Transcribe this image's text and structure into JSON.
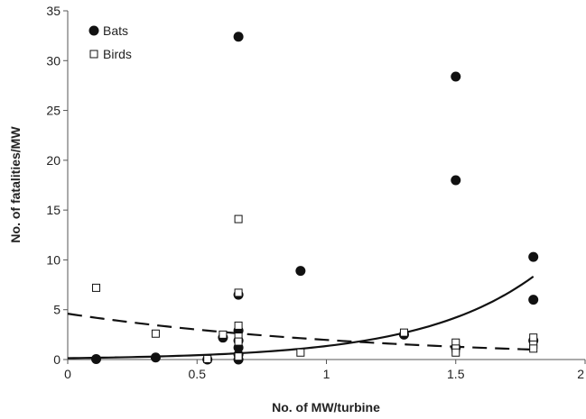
{
  "chart_data": {
    "type": "scatter",
    "xlabel": "No. of MW/turbine",
    "ylabel": "No. of fatalities/MW",
    "xlim": [
      0,
      2
    ],
    "ylim": [
      0,
      35
    ],
    "x_ticks": [
      "0",
      "0.5",
      "1",
      "1.5",
      "2"
    ],
    "y_ticks": [
      "0",
      "5",
      "10",
      "15",
      "20",
      "25",
      "30",
      "35"
    ],
    "grid": false,
    "legend_position": "top-left",
    "series": [
      {
        "name": "Bats",
        "marker": "filled-circle",
        "color": "#111111",
        "points": [
          [
            0.11,
            0.05
          ],
          [
            0.34,
            0.2
          ],
          [
            0.54,
            0.0
          ],
          [
            0.6,
            2.2
          ],
          [
            0.66,
            32.4
          ],
          [
            0.66,
            6.5
          ],
          [
            0.66,
            2.9
          ],
          [
            0.66,
            1.9
          ],
          [
            0.66,
            1.2
          ],
          [
            0.66,
            0.5
          ],
          [
            0.66,
            0.0
          ],
          [
            0.9,
            8.9
          ],
          [
            1.3,
            2.5
          ],
          [
            1.5,
            28.4
          ],
          [
            1.5,
            18.0
          ],
          [
            1.5,
            1.2
          ],
          [
            1.8,
            10.3
          ],
          [
            1.8,
            6.0
          ],
          [
            1.8,
            1.9
          ]
        ]
      },
      {
        "name": "Birds",
        "marker": "open-square",
        "color": "#111111",
        "points": [
          [
            0.11,
            7.2
          ],
          [
            0.34,
            2.6
          ],
          [
            0.54,
            0.05
          ],
          [
            0.6,
            2.5
          ],
          [
            0.66,
            14.1
          ],
          [
            0.66,
            6.7
          ],
          [
            0.66,
            3.4
          ],
          [
            0.66,
            2.3
          ],
          [
            0.66,
            1.8
          ],
          [
            0.66,
            0.3
          ],
          [
            0.9,
            0.7
          ],
          [
            1.3,
            2.7
          ],
          [
            1.5,
            1.7
          ],
          [
            1.5,
            1.1
          ],
          [
            1.5,
            0.7
          ],
          [
            1.8,
            2.2
          ],
          [
            1.8,
            1.5
          ],
          [
            1.8,
            1.1
          ]
        ]
      }
    ],
    "trendlines": [
      {
        "series": "Bats",
        "type": "exponential",
        "style": "solid",
        "a": 0.14,
        "b": 2.27,
        "x_range": [
          0,
          1.8
        ]
      },
      {
        "series": "Birds",
        "type": "exponential",
        "style": "dashed",
        "a": 4.6,
        "b": -0.85,
        "x_range": [
          0,
          1.8
        ]
      }
    ]
  }
}
